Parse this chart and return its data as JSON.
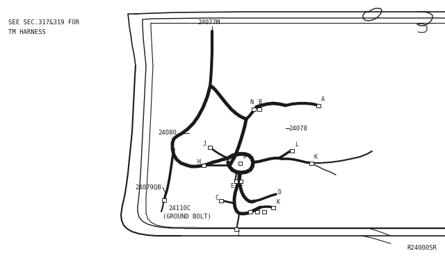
{
  "bg_color": "#ffffff",
  "line_color": "#1a1a1a",
  "fig_width": 6.4,
  "fig_height": 3.72,
  "part_number": "R24000SR",
  "note_line1": "SEE SEC.317&319 FOR",
  "note_line2": "TM HARNESS"
}
